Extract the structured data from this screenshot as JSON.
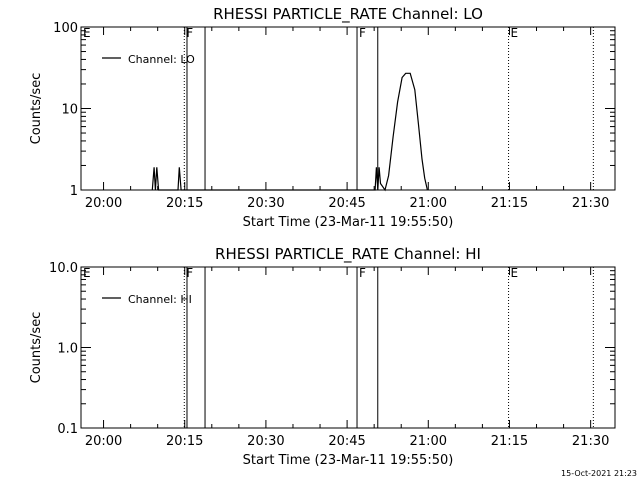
{
  "footer": {
    "timestamp": "15-Oct-2021 21:23"
  },
  "chart_data": [
    {
      "type": "line",
      "title": "RHESSI PARTICLE_RATE Channel: LO",
      "xlabel": "Start Time (23-Mar-11 19:55:50)",
      "ylabel": "Counts/sec",
      "x_unit": "minutes",
      "xlim": [
        "19:55:50",
        "21:34:30"
      ],
      "yscale": "log",
      "ylim": [
        1,
        100
      ],
      "xtick_labels": [
        "20:00",
        "20:15",
        "20:30",
        "20:45",
        "21:00",
        "21:15",
        "21:30"
      ],
      "ytick_labels": [
        "1",
        "10",
        "100"
      ],
      "legend": {
        "entries": [
          "Channel: LO"
        ],
        "placement": "top-left"
      },
      "markers": [
        {
          "label": "E",
          "time": "19:55:50",
          "style": "dotted"
        },
        {
          "label": "F",
          "time": "20:14:55",
          "style": "dotted"
        },
        {
          "label": "",
          "time": "20:15:25",
          "style": "solid"
        },
        {
          "label": "",
          "time": "20:18:45",
          "style": "solid"
        },
        {
          "label": "F",
          "time": "20:46:50",
          "style": "solid"
        },
        {
          "label": "",
          "time": "20:50:40",
          "style": "solid"
        },
        {
          "label": "E",
          "time": "21:14:50",
          "style": "dotted"
        },
        {
          "label": "",
          "time": "21:30:30",
          "style": "dotted"
        }
      ],
      "series": [
        {
          "name": "Channel: LO",
          "color": "#000000",
          "points": [
            [
              "20:09:00",
              1
            ],
            [
              "20:09:20",
              1.9
            ],
            [
              "20:09:35",
              1
            ],
            [
              "20:09:50",
              1.9
            ],
            [
              "20:10:10",
              1
            ],
            [
              "20:13:45",
              1
            ],
            [
              "20:14:00",
              1.9
            ],
            [
              "20:14:20",
              1
            ],
            [
              "20:50:10",
              1
            ],
            [
              "20:50:25",
              1.9
            ],
            [
              "20:50:40",
              1
            ],
            [
              "20:50:55",
              1.9
            ],
            [
              "20:51:10",
              1.2
            ],
            [
              "20:52:00",
              1
            ],
            [
              "20:52:40",
              1.5
            ],
            [
              "20:53:30",
              4.5
            ],
            [
              "20:54:20",
              12
            ],
            [
              "20:55:10",
              24
            ],
            [
              "20:55:50",
              27
            ],
            [
              "20:56:40",
              27
            ],
            [
              "20:57:30",
              17
            ],
            [
              "20:58:10",
              6.5
            ],
            [
              "20:58:50",
              2.4
            ],
            [
              "20:59:20",
              1.4
            ],
            [
              "20:59:50",
              1
            ]
          ]
        }
      ]
    },
    {
      "type": "line",
      "title": "RHESSI PARTICLE_RATE Channel: HI",
      "xlabel": "Start Time (23-Mar-11 19:55:50)",
      "ylabel": "Counts/sec",
      "x_unit": "minutes",
      "xlim": [
        "19:55:50",
        "21:34:30"
      ],
      "yscale": "log",
      "ylim": [
        0.1,
        10
      ],
      "xtick_labels": [
        "20:00",
        "20:15",
        "20:30",
        "20:45",
        "21:00",
        "21:15",
        "21:30"
      ],
      "ytick_labels": [
        "0.1",
        "1.0",
        "10.0"
      ],
      "legend": {
        "entries": [
          "Channel: HI"
        ],
        "placement": "top-left"
      },
      "markers": [
        {
          "label": "E",
          "time": "19:55:50",
          "style": "dotted"
        },
        {
          "label": "F",
          "time": "20:14:55",
          "style": "dotted"
        },
        {
          "label": "",
          "time": "20:15:25",
          "style": "solid"
        },
        {
          "label": "",
          "time": "20:18:45",
          "style": "solid"
        },
        {
          "label": "F",
          "time": "20:46:50",
          "style": "solid"
        },
        {
          "label": "",
          "time": "20:50:40",
          "style": "solid"
        },
        {
          "label": "E",
          "time": "21:14:50",
          "style": "dotted"
        },
        {
          "label": "",
          "time": "21:30:30",
          "style": "dotted"
        }
      ],
      "series": [
        {
          "name": "Channel: HI",
          "color": "#000000",
          "points": []
        }
      ]
    }
  ]
}
